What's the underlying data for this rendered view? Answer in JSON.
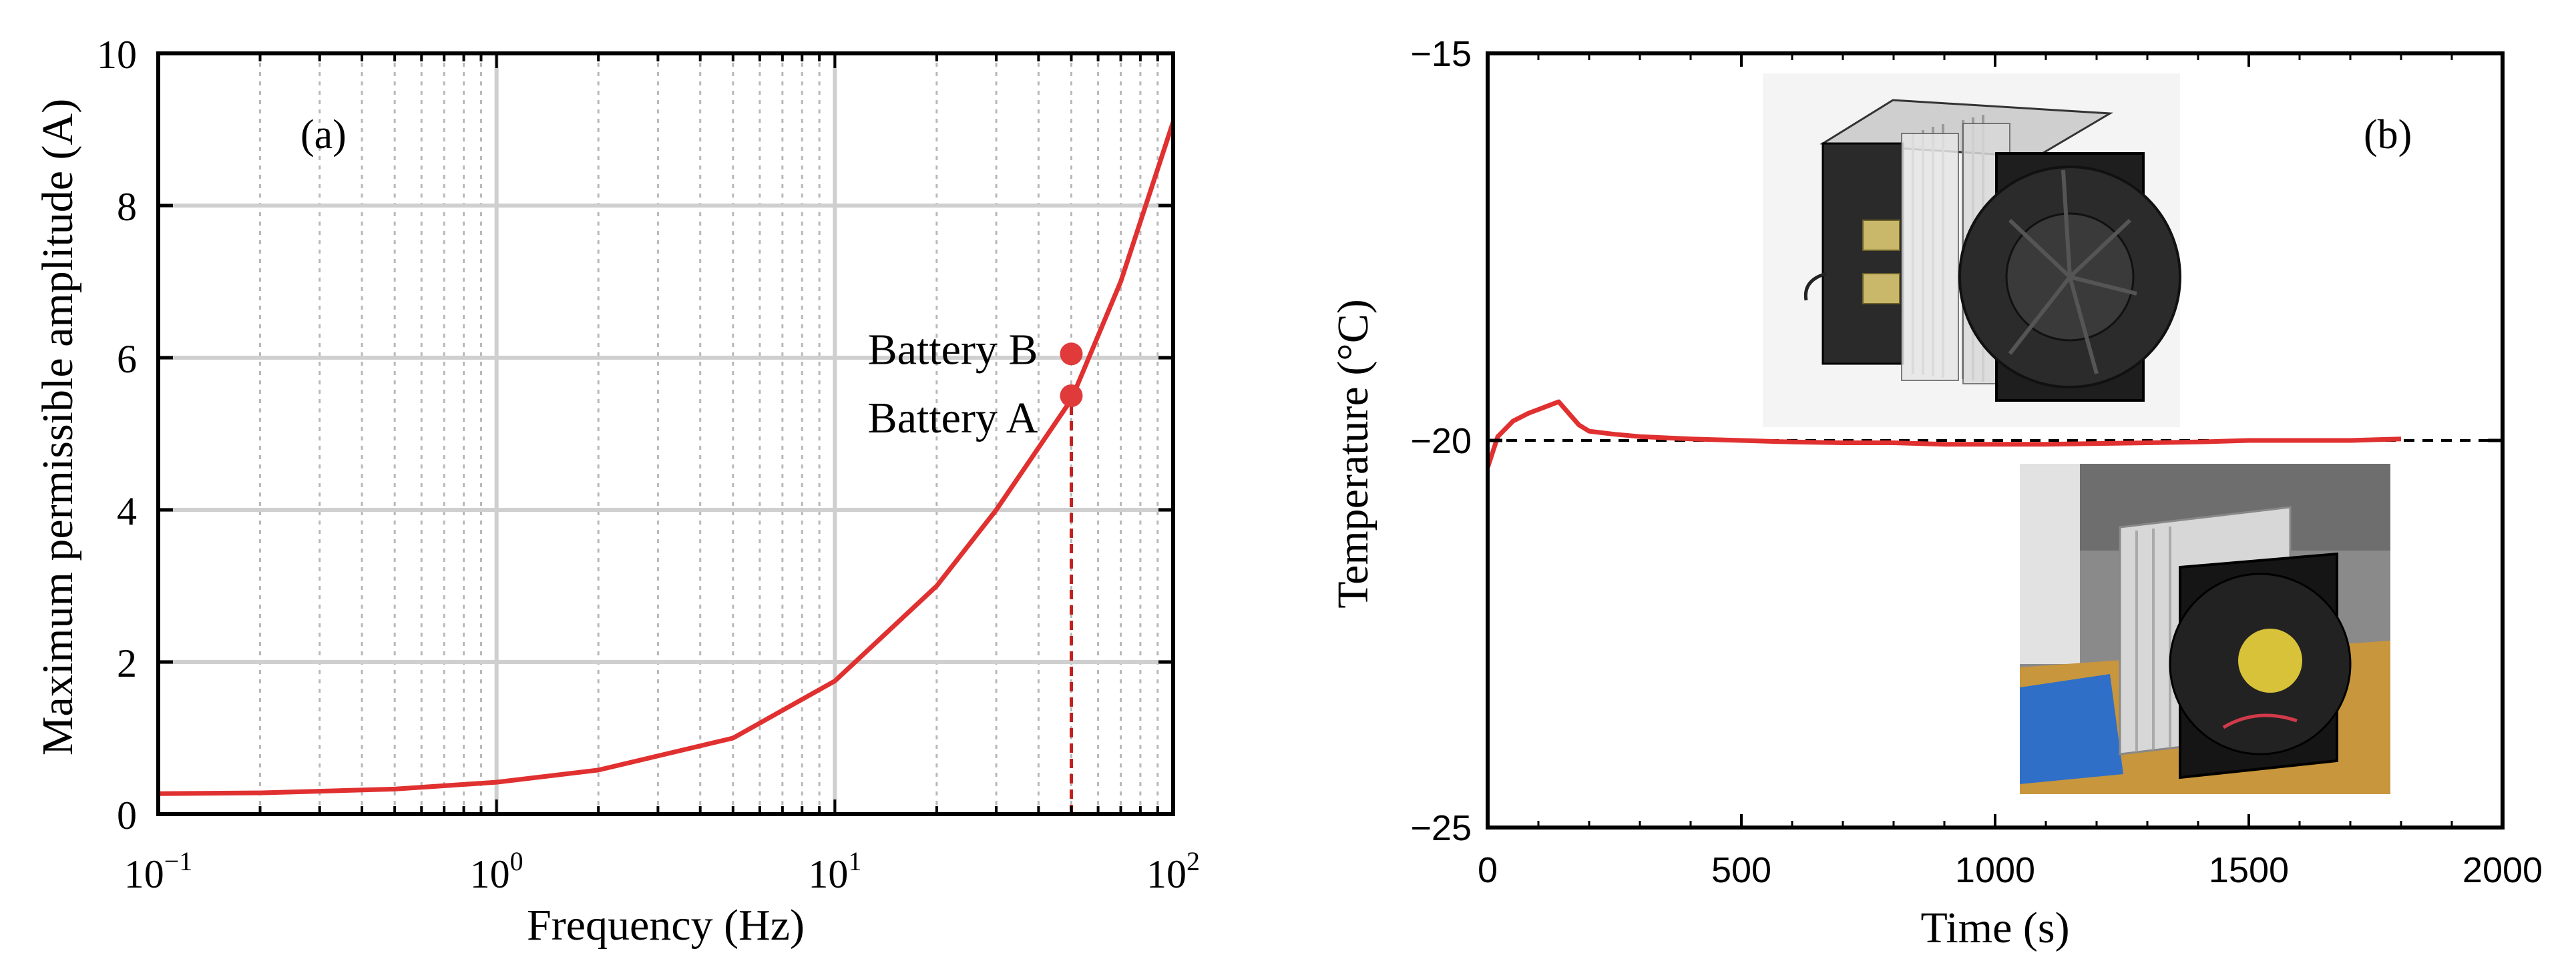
{
  "chart_data": [
    {
      "type": "line",
      "panel_label": "(a)",
      "xlabel": "Frequency (Hz)",
      "ylabel": "Maximum permissible amplitude (A)",
      "x_scale": "log",
      "xlim": [
        0.1,
        100
      ],
      "ylim": [
        0,
        10
      ],
      "x_ticks": [
        {
          "value": 0.1,
          "base": "10",
          "exp": "−1"
        },
        {
          "value": 1,
          "base": "10",
          "exp": "0"
        },
        {
          "value": 10,
          "base": "10",
          "exp": "1"
        },
        {
          "value": 100,
          "base": "10",
          "exp": "2"
        }
      ],
      "y_ticks": [
        0,
        2,
        4,
        6,
        8,
        10
      ],
      "grid": true,
      "line_color": "#e03030",
      "series": [
        {
          "x": [
            0.1,
            0.2,
            0.5,
            1,
            2,
            5,
            10,
            20,
            30,
            50,
            70,
            100
          ],
          "y": [
            0.27,
            0.28,
            0.33,
            0.42,
            0.58,
            1.0,
            1.75,
            3.0,
            4.0,
            5.45,
            7.0,
            9.1
          ]
        }
      ],
      "markers": [
        {
          "label": "Battery B",
          "x": 50,
          "y": 6.05
        },
        {
          "label": "Battery A",
          "x": 50,
          "y": 5.5
        }
      ],
      "drop_line": {
        "x": 50,
        "y_from": 0,
        "y_to": 5.5
      }
    },
    {
      "type": "line",
      "panel_label": "(b)",
      "xlabel": "Time (s)",
      "ylabel": "Temperature (°C)",
      "xlim": [
        0,
        2000
      ],
      "ylim": [
        -25,
        -15
      ],
      "x_ticks": [
        0,
        500,
        1000,
        1500,
        2000
      ],
      "y_ticks": [
        {
          "value": -25,
          "label": "−25"
        },
        {
          "value": -20,
          "label": "−20"
        },
        {
          "value": -15,
          "label": "−15"
        }
      ],
      "grid": false,
      "line_color": "#e03030",
      "reference_line": {
        "y": -20,
        "style": "dashed"
      },
      "series": [
        {
          "x": [
            0,
            20,
            50,
            80,
            100,
            120,
            140,
            160,
            180,
            200,
            250,
            300,
            400,
            500,
            600,
            700,
            800,
            900,
            1000,
            1100,
            1200,
            1300,
            1400,
            1500,
            1600,
            1700,
            1800
          ],
          "y": [
            -20.35,
            -19.95,
            -19.75,
            -19.65,
            -19.6,
            -19.55,
            -19.5,
            -19.65,
            -19.8,
            -19.88,
            -19.92,
            -19.95,
            -19.98,
            -20.0,
            -20.02,
            -20.03,
            -20.03,
            -20.05,
            -20.05,
            -20.05,
            -20.04,
            -20.03,
            -20.02,
            -20.0,
            -20.0,
            -20.0,
            -19.98
          ]
        }
      ],
      "insets": [
        {
          "name": "cooler-drawing-icon"
        },
        {
          "name": "cooler-photo-icon"
        }
      ]
    }
  ]
}
